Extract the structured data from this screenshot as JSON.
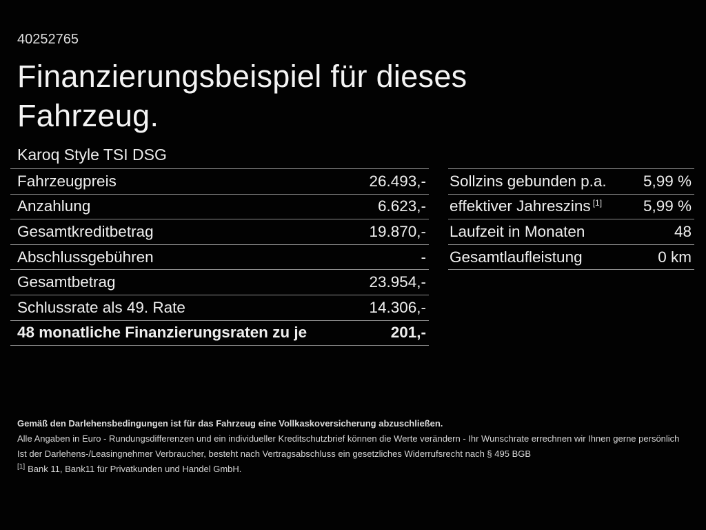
{
  "page": {
    "id_number": "40252765",
    "title_line1": "Finanzierungsbeispiel für dieses",
    "title_line2": "Fahrzeug.",
    "subtitle": "Karoq Style TSI DSG"
  },
  "left_table": {
    "rows": [
      {
        "label": "Fahrzeugpreis",
        "value": "26.493,-"
      },
      {
        "label": "Anzahlung",
        "value": "6.623,-"
      },
      {
        "label": "Gesamtkreditbetrag",
        "value": "19.870,-"
      },
      {
        "label": "Abschlussgebühren",
        "value": "-"
      },
      {
        "label": "Gesamtbetrag",
        "value": "23.954,-"
      },
      {
        "label": "Schlussrate als 49. Rate",
        "value": "14.306,-"
      },
      {
        "label": "48 monatliche Finanzierungsraten zu je",
        "value": "201,-"
      }
    ]
  },
  "right_table": {
    "rows": [
      {
        "label": "Sollzins gebunden p.a.",
        "value": "5,99 %"
      },
      {
        "label": "effektiver Jahreszins",
        "footnote_marker": "[1]",
        "value": "5,99 %"
      },
      {
        "label": "Laufzeit in Monaten",
        "value": "48"
      },
      {
        "label": "Gesamtlaufleistung",
        "value": "0 km"
      }
    ]
  },
  "footer": {
    "bold_note": "Gemäß den Darlehensbedingungen ist für das Fahrzeug eine Vollkaskoversicherung abzuschließen.",
    "note_line1": "Alle Angaben in Euro - Rundungsdifferenzen und ein individueller Kreditschutzbrief können die Werte verändern - Ihr Wunschrate errechnen wir Ihnen gerne persönlich",
    "note_line2": "Ist der Darlehens-/Leasingnehmer Verbraucher, besteht nach Vertragsabschluss ein gesetzliches Widerrufsrecht nach § 495 BGB",
    "footnote_marker": "[1]",
    "footnote_text": "Bank 11, Bank11 für Privatkunden und Handel GmbH."
  },
  "colors": {
    "background": "#020202",
    "text": "#f2f2f2",
    "divider": "#8e8e8e",
    "footer_text": "#d6d6d6"
  }
}
